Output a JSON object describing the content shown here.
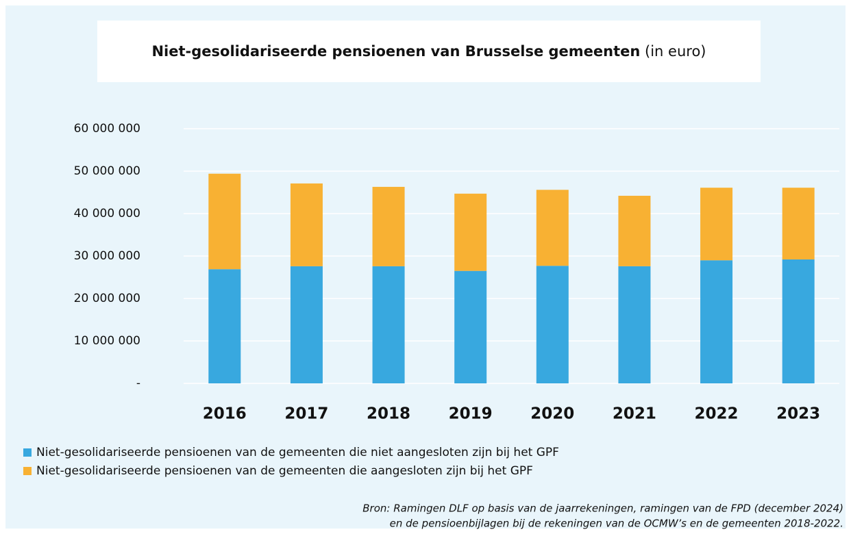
{
  "chart_data": {
    "type": "stacked_bar",
    "title": "Niet-gesolidariseerde pensioenen van Brusselse gemeenten",
    "title_unit": "(in euro)",
    "categories": [
      "2016",
      "2017",
      "2018",
      "2019",
      "2020",
      "2021",
      "2022",
      "2023"
    ],
    "series": [
      {
        "name": "Niet-gesolidariseerde pensioenen van de gemeenten die niet aangesloten zijn bij het GPF",
        "color": "#38a8df",
        "values": [
          26900000,
          27600000,
          27600000,
          26500000,
          27700000,
          27600000,
          29000000,
          29200000
        ]
      },
      {
        "name": "Niet-gesolidariseerde pensioenen van de gemeenten die aangesloten zijn bij het GPF",
        "color": "#f8b133",
        "values": [
          22500000,
          19500000,
          18700000,
          18200000,
          17900000,
          16600000,
          17100000,
          16900000
        ]
      }
    ],
    "ylim": [
      0,
      60000000
    ],
    "yticks": [
      {
        "value": 0,
        "label": "-"
      },
      {
        "value": 10000000,
        "label": "10 000 000"
      },
      {
        "value": 20000000,
        "label": "20 000 000"
      },
      {
        "value": 30000000,
        "label": "30 000 000"
      },
      {
        "value": 40000000,
        "label": "40 000 000"
      },
      {
        "value": 50000000,
        "label": "50 000 000"
      },
      {
        "value": 60000000,
        "label": "60 000 000"
      }
    ],
    "grid": true,
    "source": [
      "Bron: Ramingen DLF op basis van de jaarrekeningen, ramingen van de FPD (december 2024)",
      "en de pensioenbijlagen bij de rekeningen van de OCMW’s en de gemeenten 2018-2022."
    ]
  }
}
